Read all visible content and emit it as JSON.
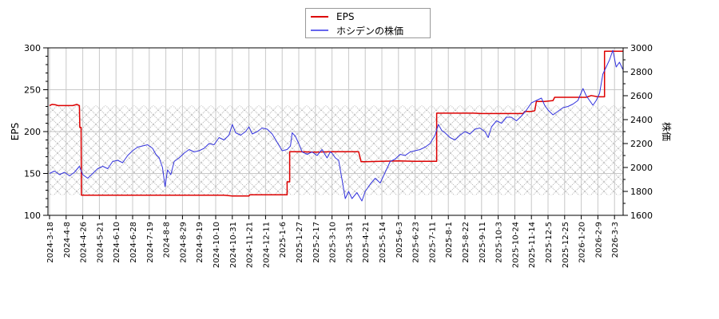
{
  "chart_data": {
    "type": "line",
    "title": "",
    "xlabel": "",
    "ylabel_left": "EPS",
    "ylabel_right": "株価",
    "ylim_left": [
      100,
      300
    ],
    "ylim_right": [
      1600,
      3000
    ],
    "yticks_left": [
      100,
      150,
      200,
      250,
      300
    ],
    "yticks_right": [
      1600,
      1800,
      2000,
      2200,
      2400,
      2600,
      2800,
      3000
    ],
    "grid": true,
    "legend_position": "top-center",
    "hatched_band_left_axis": [
      124,
      231
    ],
    "x_tick_labels": [
      "2024-3-18",
      "2024-4-8",
      "2024-4-26",
      "2024-5-21",
      "2024-6-10",
      "2024-6-28",
      "2024-7-19",
      "2024-8-8",
      "2024-8-29",
      "2024-9-19",
      "2024-10-10",
      "2024-10-31",
      "2024-11-21",
      "2024-12-11",
      "2025-1-6",
      "2025-1-27",
      "2025-2-17",
      "2025-3-10",
      "2025-3-31",
      "2025-4-21",
      "2025-5-14",
      "2025-6-3",
      "2025-6-23",
      "2025-7-11",
      "2025-8-1",
      "2025-8-22",
      "2025-9-11",
      "2025-10-3",
      "2025-10-24",
      "2025-11-14",
      "2025-12-5",
      "2025-12-25",
      "2026-1-20",
      "2026-2-9",
      "2026-3-3"
    ],
    "series": [
      {
        "name": "EPS",
        "axis": "left",
        "color": "#dd0000",
        "points": [
          [
            0,
            231
          ],
          [
            0.15,
            232.5
          ],
          [
            0.35,
            232
          ],
          [
            0.5,
            231
          ],
          [
            1.2,
            231
          ],
          [
            1.4,
            231
          ],
          [
            1.65,
            232.5
          ],
          [
            1.8,
            231
          ],
          [
            1.82,
            205
          ],
          [
            1.9,
            205
          ],
          [
            1.92,
            124
          ],
          [
            5,
            124
          ],
          [
            7.5,
            124
          ],
          [
            10,
            124
          ],
          [
            10.5,
            124
          ],
          [
            11,
            123
          ],
          [
            12,
            123
          ],
          [
            12.05,
            124.5
          ],
          [
            13,
            124.5
          ],
          [
            14,
            124.5
          ],
          [
            14.3,
            124.5
          ],
          [
            14.3,
            140
          ],
          [
            14.45,
            140
          ],
          [
            14.45,
            176
          ],
          [
            15,
            176
          ],
          [
            16,
            175.5
          ],
          [
            17,
            176
          ],
          [
            18,
            176
          ],
          [
            18.6,
            176
          ],
          [
            18.75,
            164
          ],
          [
            19,
            164
          ],
          [
            20,
            164.5
          ],
          [
            21,
            165
          ],
          [
            22,
            164.5
          ],
          [
            23,
            164.5
          ],
          [
            23.3,
            164.5
          ],
          [
            23.3,
            222
          ],
          [
            24,
            222
          ],
          [
            25,
            222
          ],
          [
            25.5,
            222
          ],
          [
            26,
            221.5
          ],
          [
            27,
            221.5
          ],
          [
            28,
            221.5
          ],
          [
            28.5,
            221.5
          ],
          [
            28.6,
            224
          ],
          [
            29,
            224
          ],
          [
            29.2,
            225
          ],
          [
            29.3,
            236
          ],
          [
            29.8,
            236
          ],
          [
            30.3,
            237
          ],
          [
            30.4,
            241
          ],
          [
            31,
            241
          ],
          [
            32,
            241
          ],
          [
            32.3,
            241
          ],
          [
            32.6,
            243
          ],
          [
            33,
            241.5
          ],
          [
            33.4,
            241.5
          ],
          [
            33.4,
            296
          ],
          [
            34,
            296
          ],
          [
            34.5,
            296
          ]
        ]
      },
      {
        "name": "ホシデンの株価",
        "axis": "right",
        "color": "#3333dd",
        "points": [
          [
            0,
            1950
          ],
          [
            0.3,
            1970
          ],
          [
            0.6,
            1940
          ],
          [
            0.9,
            1960
          ],
          [
            1.2,
            1930
          ],
          [
            1.5,
            1960
          ],
          [
            1.8,
            2010
          ],
          [
            2.0,
            1940
          ],
          [
            2.3,
            1910
          ],
          [
            2.6,
            1950
          ],
          [
            2.9,
            1990
          ],
          [
            3.2,
            2010
          ],
          [
            3.5,
            1990
          ],
          [
            3.8,
            2050
          ],
          [
            4.1,
            2060
          ],
          [
            4.4,
            2040
          ],
          [
            4.7,
            2100
          ],
          [
            5.0,
            2140
          ],
          [
            5.3,
            2170
          ],
          [
            5.6,
            2180
          ],
          [
            5.9,
            2190
          ],
          [
            6.2,
            2160
          ],
          [
            6.4,
            2110
          ],
          [
            6.6,
            2080
          ],
          [
            6.8,
            2000
          ],
          [
            6.95,
            1840
          ],
          [
            7.1,
            1980
          ],
          [
            7.3,
            1940
          ],
          [
            7.5,
            2050
          ],
          [
            7.8,
            2080
          ],
          [
            8.1,
            2120
          ],
          [
            8.4,
            2150
          ],
          [
            8.7,
            2130
          ],
          [
            9.0,
            2140
          ],
          [
            9.3,
            2160
          ],
          [
            9.6,
            2200
          ],
          [
            9.9,
            2190
          ],
          [
            10.2,
            2250
          ],
          [
            10.5,
            2230
          ],
          [
            10.8,
            2270
          ],
          [
            11.0,
            2360
          ],
          [
            11.2,
            2290
          ],
          [
            11.5,
            2270
          ],
          [
            11.8,
            2300
          ],
          [
            12.0,
            2340
          ],
          [
            12.2,
            2280
          ],
          [
            12.5,
            2300
          ],
          [
            12.8,
            2330
          ],
          [
            13.1,
            2320
          ],
          [
            13.4,
            2280
          ],
          [
            13.7,
            2210
          ],
          [
            14.0,
            2140
          ],
          [
            14.3,
            2150
          ],
          [
            14.5,
            2180
          ],
          [
            14.6,
            2290
          ],
          [
            14.8,
            2260
          ],
          [
            15.0,
            2200
          ],
          [
            15.2,
            2130
          ],
          [
            15.5,
            2110
          ],
          [
            15.8,
            2130
          ],
          [
            16.1,
            2100
          ],
          [
            16.4,
            2150
          ],
          [
            16.7,
            2080
          ],
          [
            16.9,
            2130
          ],
          [
            17.0,
            2120
          ],
          [
            17.2,
            2080
          ],
          [
            17.4,
            2060
          ],
          [
            17.6,
            1900
          ],
          [
            17.8,
            1740
          ],
          [
            18.0,
            1800
          ],
          [
            18.2,
            1740
          ],
          [
            18.5,
            1790
          ],
          [
            18.8,
            1720
          ],
          [
            19.0,
            1800
          ],
          [
            19.3,
            1860
          ],
          [
            19.6,
            1910
          ],
          [
            19.9,
            1870
          ],
          [
            20.2,
            1960
          ],
          [
            20.5,
            2050
          ],
          [
            20.8,
            2070
          ],
          [
            21.1,
            2110
          ],
          [
            21.4,
            2100
          ],
          [
            21.7,
            2130
          ],
          [
            22.0,
            2140
          ],
          [
            22.3,
            2150
          ],
          [
            22.6,
            2170
          ],
          [
            22.9,
            2200
          ],
          [
            23.2,
            2270
          ],
          [
            23.4,
            2360
          ],
          [
            23.6,
            2310
          ],
          [
            23.8,
            2290
          ],
          [
            24.1,
            2250
          ],
          [
            24.4,
            2230
          ],
          [
            24.7,
            2270
          ],
          [
            25.0,
            2300
          ],
          [
            25.3,
            2280
          ],
          [
            25.6,
            2320
          ],
          [
            25.9,
            2330
          ],
          [
            26.2,
            2300
          ],
          [
            26.4,
            2250
          ],
          [
            26.6,
            2340
          ],
          [
            26.9,
            2390
          ],
          [
            27.2,
            2370
          ],
          [
            27.5,
            2420
          ],
          [
            27.8,
            2420
          ],
          [
            28.1,
            2390
          ],
          [
            28.4,
            2430
          ],
          [
            28.7,
            2480
          ],
          [
            29.0,
            2540
          ],
          [
            29.3,
            2560
          ],
          [
            29.6,
            2580
          ],
          [
            29.8,
            2520
          ],
          [
            30.0,
            2480
          ],
          [
            30.3,
            2440
          ],
          [
            30.6,
            2470
          ],
          [
            30.9,
            2500
          ],
          [
            31.2,
            2510
          ],
          [
            31.5,
            2530
          ],
          [
            31.8,
            2560
          ],
          [
            32.1,
            2660
          ],
          [
            32.3,
            2600
          ],
          [
            32.5,
            2560
          ],
          [
            32.7,
            2520
          ],
          [
            32.9,
            2560
          ],
          [
            33.1,
            2620
          ],
          [
            33.3,
            2780
          ],
          [
            33.5,
            2840
          ],
          [
            33.7,
            2900
          ],
          [
            33.9,
            2980
          ],
          [
            34.1,
            2840
          ],
          [
            34.3,
            2880
          ],
          [
            34.5,
            2820
          ]
        ]
      }
    ]
  },
  "legend": {
    "items": [
      {
        "label": "EPS",
        "color": "#dd0000"
      },
      {
        "label": "ホシデンの株価",
        "color": "#6666ee"
      }
    ]
  },
  "colors": {
    "grid": "#c8c8c8",
    "hatch": "#b0b0b0",
    "axis": "#000000"
  }
}
